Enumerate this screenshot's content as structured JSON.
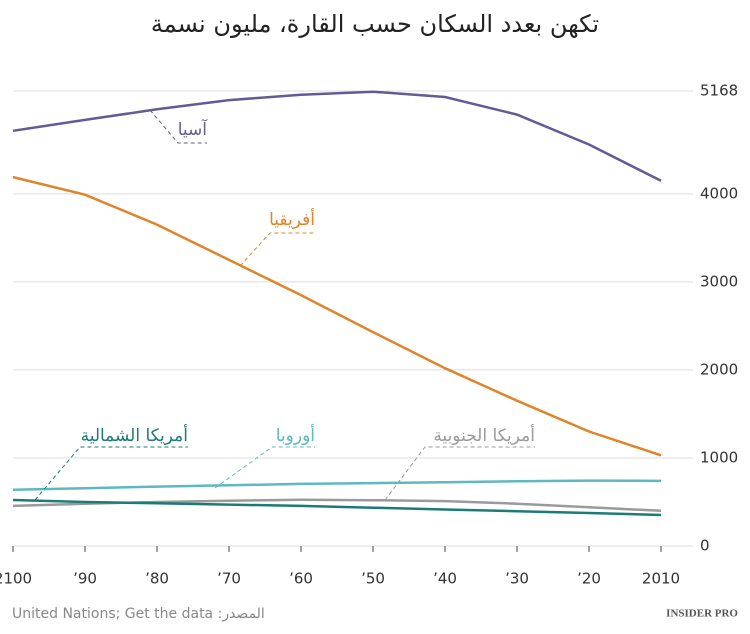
{
  "chart_data": {
    "type": "line",
    "title": "تكهن بعدد السكان حسب القارة، مليون نسمة",
    "x": [
      2010,
      2020,
      2030,
      2040,
      2050,
      2060,
      2070,
      2080,
      2090,
      2100
    ],
    "xlim": [
      2100,
      2010
    ],
    "xticks": [
      {
        "value": 2100,
        "label": "2100"
      },
      {
        "value": 2090,
        "label": "’90"
      },
      {
        "value": 2080,
        "label": "’80"
      },
      {
        "value": 2070,
        "label": "’70"
      },
      {
        "value": 2060,
        "label": "’60"
      },
      {
        "value": 2050,
        "label": "’50"
      },
      {
        "value": 2040,
        "label": "’40"
      },
      {
        "value": 2030,
        "label": "’30"
      },
      {
        "value": 2020,
        "label": "’20"
      },
      {
        "value": 2010,
        "label": "2010"
      }
    ],
    "ylim": [
      0,
      5168
    ],
    "yticks": [
      0,
      1000,
      2000,
      3000,
      4000,
      5168
    ],
    "grid": true,
    "series": [
      {
        "name": "آسيا",
        "color": "#625c95",
        "values": [
          4148,
          4560,
          4900,
          5100,
          5160,
          5125,
          5065,
          4960,
          4840,
          4716
        ]
      },
      {
        "name": "أفريقيا",
        "color": "#e0842a",
        "values": [
          1030,
          1300,
          1650,
          2020,
          2430,
          2850,
          3250,
          3650,
          3990,
          4190
        ]
      },
      {
        "name": "أمريكا الجنوبية",
        "color": "#9a9a9a",
        "values": [
          400,
          440,
          480,
          510,
          520,
          525,
          515,
          500,
          480,
          455
        ]
      },
      {
        "name": "أوروبا",
        "color": "#5fb8c0",
        "values": [
          739,
          743,
          735,
          725,
          715,
          705,
          690,
          675,
          655,
          640
        ]
      },
      {
        "name": "أمريكا الشمالية",
        "color": "#1e7a76",
        "values": [
          352,
          375,
          395,
          415,
          435,
          455,
          470,
          485,
          500,
          523
        ]
      }
    ],
    "source": "United Nations; Get the data :المصدر",
    "logo": "INSIDER PRO"
  }
}
